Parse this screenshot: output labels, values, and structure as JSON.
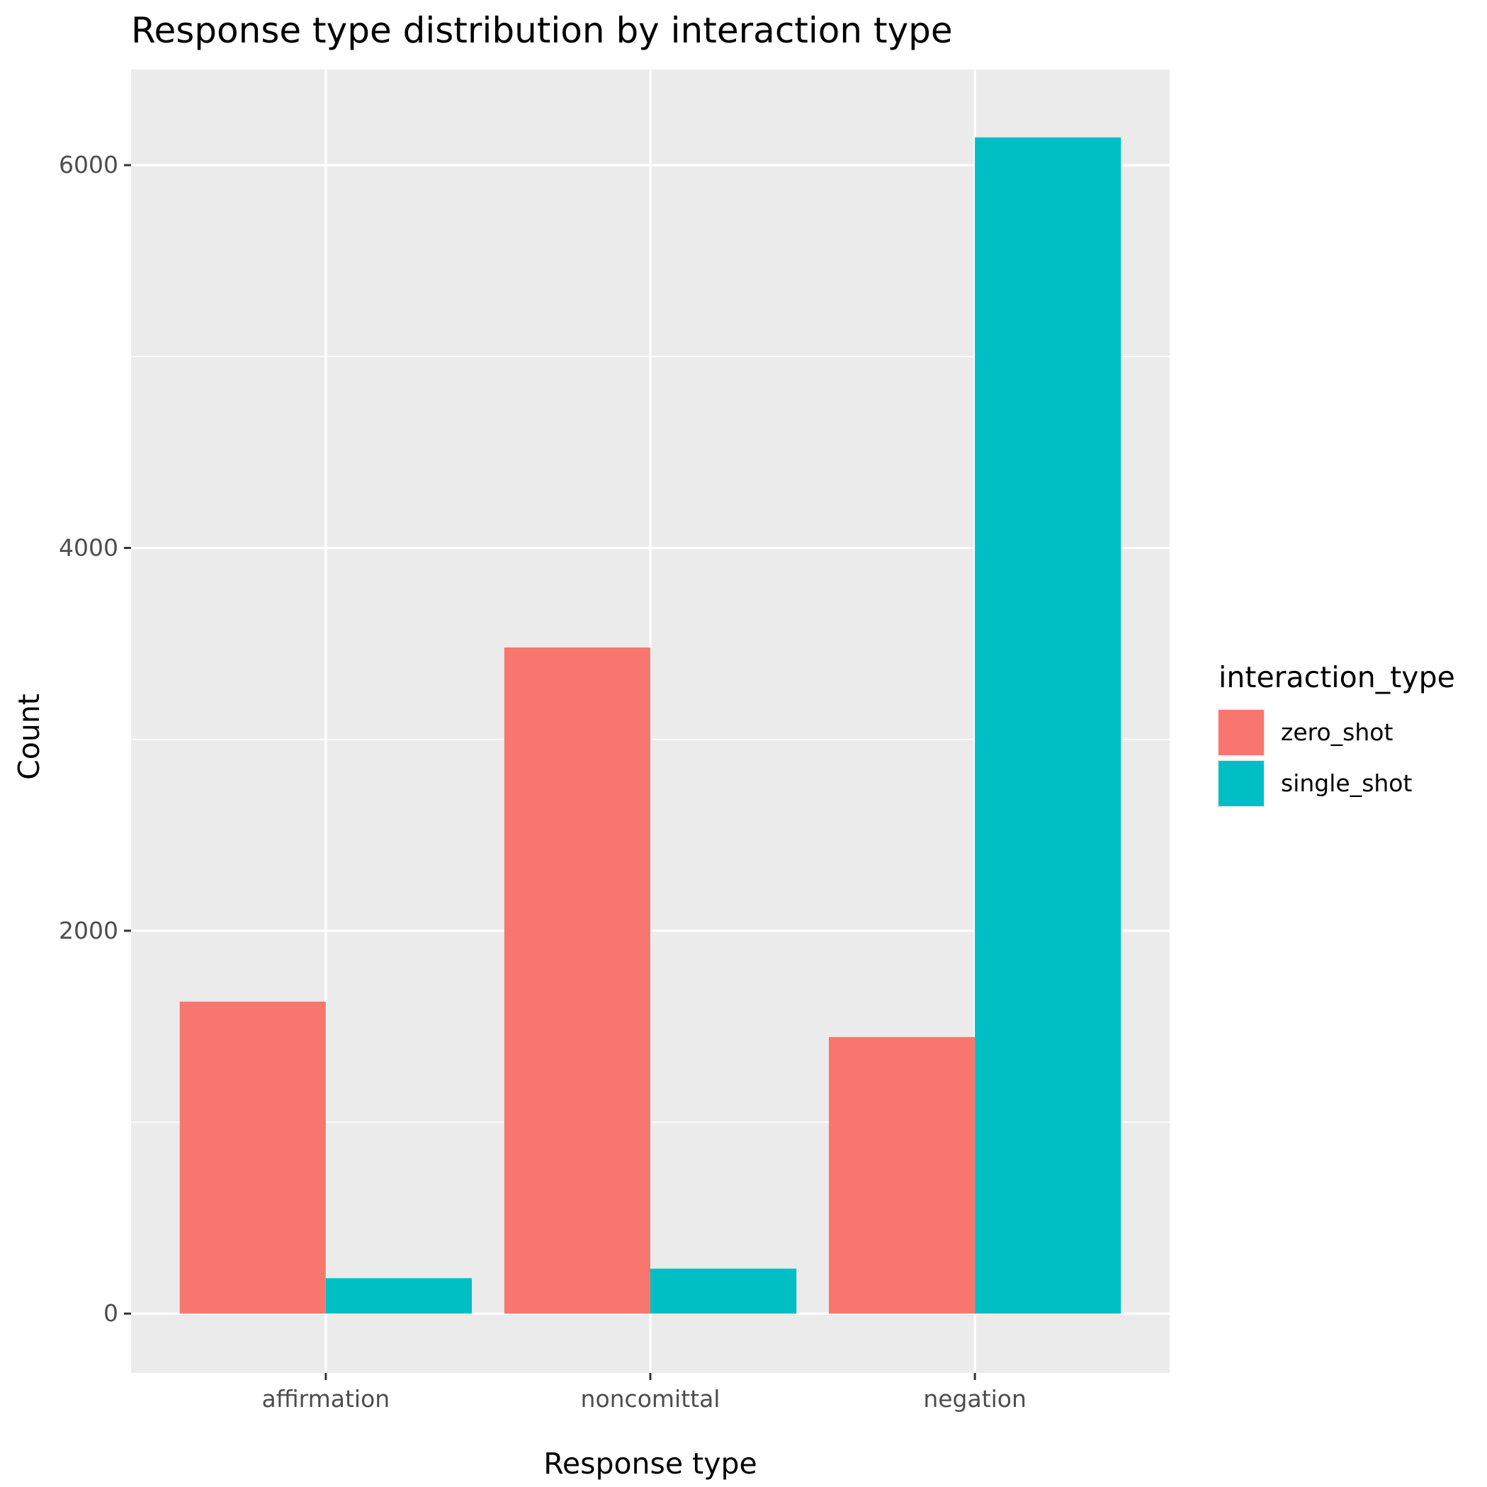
{
  "chart_data": {
    "type": "bar",
    "title": "Response type distribution by interaction type",
    "xlabel": "Response type",
    "ylabel": "Count",
    "categories": [
      "affirmation",
      "noncomittal",
      "negation"
    ],
    "series": [
      {
        "name": "zero_shot",
        "values": [
          1630,
          3480,
          1445
        ]
      },
      {
        "name": "single_shot",
        "values": [
          185,
          235,
          6145
        ]
      }
    ],
    "ylim": [
      -310,
      6500
    ],
    "yticks": [
      0,
      2000,
      4000,
      6000
    ],
    "yticks_labels": [
      "0",
      "2000",
      "4000",
      "6000"
    ],
    "grid": true,
    "legend": {
      "title": "interaction_type",
      "placement": "right"
    },
    "colors": {
      "zero_shot": "#F8766D",
      "single_shot": "#00BFC4",
      "panel_background": "#EBEBEB",
      "grid": "#FFFFFF"
    }
  }
}
